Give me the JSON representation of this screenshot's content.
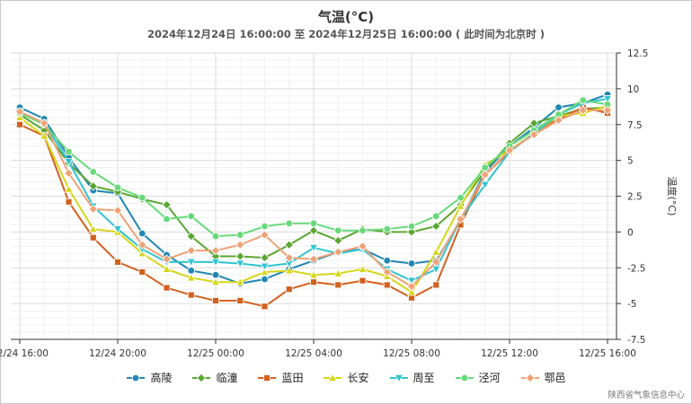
{
  "chart_data": {
    "type": "line",
    "title": "气温(°C)",
    "subtitle": "2024年12月24日 16:00:00 至 2024年12月25日 16:00:00 ( 此时间为北京时 )",
    "ylabel": "温度(°C)",
    "xlabel": "",
    "ylim": [
      -7.5,
      12.5
    ],
    "yticks": [
      "12.5",
      "10",
      "7.5",
      "5",
      "2.5",
      "0",
      "-2.5",
      "-5",
      "-7.5"
    ],
    "yticks_values": [
      12.5,
      10,
      7.5,
      5,
      2.5,
      0,
      -2.5,
      -5,
      -7.5
    ],
    "x_hours": [
      16,
      17,
      18,
      19,
      20,
      21,
      22,
      23,
      24,
      25,
      26,
      27,
      28,
      29,
      30,
      31,
      32,
      33,
      34,
      35,
      36,
      37,
      38,
      39,
      40
    ],
    "xticks": [
      "12/24 16:00",
      "12/24 20:00",
      "12/25 00:00",
      "12/25 04:00",
      "12/25 08:00",
      "12/25 12:00",
      "12/25 16:00"
    ],
    "xticks_hours": [
      16,
      20,
      24,
      28,
      32,
      36,
      40
    ],
    "grid": true,
    "legend_position": "bottom",
    "series": [
      {
        "name": "高陵",
        "color": "#1f87b3",
        "marker": "circle",
        "values": [
          8.7,
          7.9,
          5.2,
          2.9,
          2.7,
          -0.1,
          -1.6,
          -2.7,
          -3.0,
          -3.6,
          -3.3,
          -2.6,
          -2.0,
          -1.4,
          -1.2,
          -2.0,
          -2.2,
          -2.0,
          0.8,
          4.2,
          6.0,
          7.3,
          8.7,
          9.0,
          9.6
        ]
      },
      {
        "name": "临潼",
        "color": "#58a632",
        "marker": "diamond",
        "values": [
          8.2,
          7.1,
          4.8,
          3.2,
          2.8,
          2.3,
          1.9,
          -0.3,
          -1.7,
          -1.7,
          -1.8,
          -0.9,
          0.1,
          -0.6,
          0.2,
          0.0,
          0.0,
          0.4,
          1.9,
          4.3,
          6.2,
          7.6,
          8.1,
          8.6,
          8.7
        ]
      },
      {
        "name": "蓝田",
        "color": "#d2611f",
        "marker": "square",
        "values": [
          7.5,
          6.7,
          2.1,
          -0.4,
          -2.1,
          -2.8,
          -3.9,
          -4.4,
          -4.8,
          -4.8,
          -5.2,
          -4.0,
          -3.5,
          -3.7,
          -3.4,
          -3.7,
          -4.6,
          -3.7,
          0.5,
          4.0,
          5.6,
          6.9,
          7.9,
          8.7,
          8.3
        ]
      },
      {
        "name": "长安",
        "color": "#d6d61c",
        "marker": "triangle",
        "values": [
          8.0,
          6.7,
          3.0,
          0.2,
          0.0,
          -1.5,
          -2.6,
          -3.2,
          -3.5,
          -3.5,
          -2.8,
          -2.7,
          -3.0,
          -2.9,
          -2.6,
          -3.1,
          -4.2,
          -1.4,
          1.8,
          4.7,
          5.7,
          6.9,
          8.1,
          8.3,
          8.8
        ]
      },
      {
        "name": "周至",
        "color": "#2fc4cf",
        "marker": "triangle-down",
        "values": [
          8.4,
          7.6,
          4.9,
          1.8,
          0.2,
          -1.2,
          -2.1,
          -2.1,
          -2.1,
          -2.2,
          -2.4,
          -2.2,
          -1.1,
          -1.5,
          -1.2,
          -2.6,
          -3.4,
          -2.6,
          0.9,
          3.3,
          5.6,
          6.9,
          8.2,
          9.0,
          9.3
        ]
      },
      {
        "name": "泾河",
        "color": "#68d97a",
        "marker": "circle",
        "values": [
          8.3,
          7.5,
          5.6,
          4.2,
          3.1,
          2.4,
          0.9,
          1.1,
          -0.3,
          -0.2,
          0.4,
          0.6,
          0.6,
          0.1,
          0.1,
          0.2,
          0.4,
          1.1,
          2.4,
          4.5,
          6.0,
          7.1,
          8.2,
          9.2,
          8.9
        ]
      },
      {
        "name": "鄠邑",
        "color": "#eea276",
        "marker": "diamond",
        "values": [
          8.4,
          7.6,
          4.1,
          1.6,
          1.5,
          -0.9,
          -1.9,
          -1.3,
          -1.3,
          -0.9,
          -0.2,
          -1.8,
          -1.9,
          -1.4,
          -1.0,
          -2.8,
          -3.8,
          -2.1,
          0.9,
          4.0,
          5.7,
          6.8,
          7.8,
          8.5,
          8.5
        ]
      }
    ]
  },
  "credit": "陕西省气象信息中心"
}
